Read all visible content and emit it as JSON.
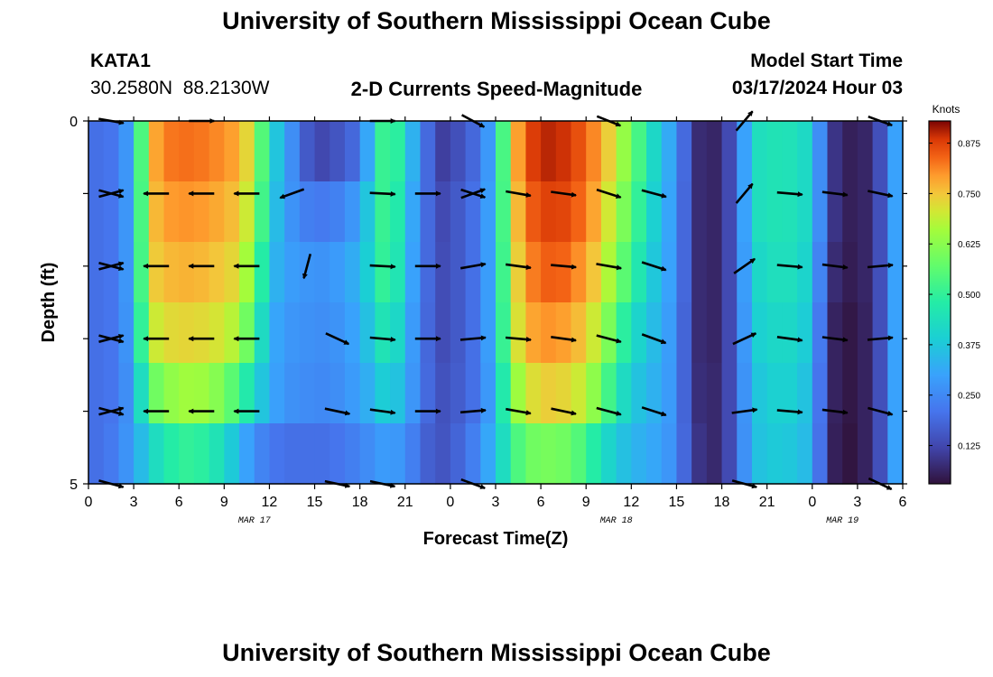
{
  "header": {
    "title": "University of Southern Mississippi Ocean Cube",
    "station_id": "KATA1",
    "station_coords": "30.2580N  88.2130W",
    "plot_title": "2-D Currents Speed-Magnitude",
    "model_start_label": "Model Start Time",
    "model_start_value": "03/17/2024 Hour 03"
  },
  "footer": {
    "title": "University of Southern Mississippi Ocean Cube"
  },
  "chart_data": {
    "type": "heatmap",
    "title": "2-D Currents Speed-Magnitude",
    "xlabel": "Forecast Time(Z)",
    "ylabel": "Depth (ft)",
    "x_tick_labels": [
      "0",
      "3",
      "6",
      "9",
      "12",
      "15",
      "18",
      "21",
      "0",
      "3",
      "6",
      "9",
      "12",
      "15",
      "18",
      "21",
      "0",
      "3",
      "6"
    ],
    "x_range_hours": [
      0,
      54
    ],
    "date_labels": [
      {
        "hour": 11,
        "text": "MAR 17"
      },
      {
        "hour": 35,
        "text": "MAR 18"
      },
      {
        "hour": 50,
        "text": "MAR 19"
      }
    ],
    "y_tick_labels": [
      {
        "depth": 0,
        "text": "0"
      },
      {
        "depth": 5,
        "text": "5"
      }
    ],
    "y_range_ft": [
      0,
      5
    ],
    "depth_levels": [
      0,
      1,
      2,
      3,
      4,
      5
    ],
    "colorbar": {
      "unit": "Knots",
      "range": [
        0.03,
        0.93
      ],
      "ticks": [
        "0.125",
        "0.250",
        "0.375",
        "0.500",
        "0.625",
        "0.750",
        "0.875"
      ],
      "tick_values": [
        0.125,
        0.25,
        0.375,
        0.5,
        0.625,
        0.75,
        0.875
      ]
    },
    "speed_profile": {
      "hours": [
        0,
        1,
        2,
        3,
        4,
        5,
        6,
        7,
        8,
        9,
        10,
        11,
        12,
        13,
        14,
        15,
        16,
        17,
        18,
        19,
        20,
        21,
        22,
        23,
        24,
        25,
        26,
        27,
        28,
        29,
        30,
        31,
        32,
        33,
        34,
        35,
        36,
        37,
        38,
        39,
        40,
        41,
        42,
        43,
        44,
        45,
        46,
        47,
        48,
        49,
        50,
        51,
        52,
        53,
        54
      ],
      "rows": [
        {
          "depth": 0,
          "values": [
            0.2,
            0.2,
            0.22,
            0.33,
            0.75,
            0.82,
            0.83,
            0.83,
            0.82,
            0.8,
            0.78,
            0.68,
            0.42,
            0.32,
            0.2,
            0.12,
            0.13,
            0.17,
            0.2,
            0.42,
            0.6,
            0.38,
            0.28,
            0.1,
            0.12,
            0.16,
            0.21,
            0.35,
            0.72,
            0.86,
            0.9,
            0.9,
            0.88,
            0.84,
            0.78,
            0.7,
            0.58,
            0.48,
            0.35,
            0.28,
            0.1,
            0.05,
            0.08,
            0.18,
            0.42,
            0.45,
            0.45,
            0.44,
            0.4,
            0.12,
            0.06,
            0.05,
            0.08,
            0.2,
            0.4
          ]
        },
        {
          "depth": 1,
          "values": [
            0.2,
            0.2,
            0.22,
            0.33,
            0.74,
            0.79,
            0.8,
            0.8,
            0.79,
            0.77,
            0.75,
            0.65,
            0.4,
            0.3,
            0.24,
            0.22,
            0.22,
            0.25,
            0.3,
            0.44,
            0.58,
            0.36,
            0.26,
            0.12,
            0.14,
            0.18,
            0.22,
            0.36,
            0.7,
            0.83,
            0.87,
            0.88,
            0.86,
            0.82,
            0.75,
            0.66,
            0.55,
            0.45,
            0.34,
            0.27,
            0.1,
            0.05,
            0.08,
            0.18,
            0.42,
            0.45,
            0.45,
            0.44,
            0.4,
            0.12,
            0.06,
            0.05,
            0.08,
            0.2,
            0.4
          ]
        },
        {
          "depth": 2,
          "values": [
            0.2,
            0.2,
            0.22,
            0.33,
            0.73,
            0.76,
            0.77,
            0.77,
            0.76,
            0.74,
            0.72,
            0.6,
            0.36,
            0.3,
            0.28,
            0.27,
            0.27,
            0.3,
            0.34,
            0.44,
            0.56,
            0.35,
            0.25,
            0.13,
            0.14,
            0.18,
            0.22,
            0.36,
            0.68,
            0.8,
            0.84,
            0.85,
            0.83,
            0.78,
            0.72,
            0.62,
            0.5,
            0.42,
            0.33,
            0.27,
            0.1,
            0.05,
            0.08,
            0.18,
            0.4,
            0.43,
            0.44,
            0.43,
            0.38,
            0.1,
            0.05,
            0.05,
            0.08,
            0.2,
            0.4
          ]
        },
        {
          "depth": 3,
          "values": [
            0.2,
            0.2,
            0.22,
            0.32,
            0.68,
            0.72,
            0.73,
            0.73,
            0.72,
            0.7,
            0.66,
            0.52,
            0.33,
            0.28,
            0.27,
            0.26,
            0.26,
            0.28,
            0.32,
            0.4,
            0.5,
            0.33,
            0.24,
            0.13,
            0.14,
            0.18,
            0.22,
            0.36,
            0.66,
            0.77,
            0.8,
            0.8,
            0.78,
            0.74,
            0.66,
            0.55,
            0.43,
            0.38,
            0.32,
            0.26,
            0.1,
            0.05,
            0.08,
            0.18,
            0.38,
            0.41,
            0.42,
            0.41,
            0.36,
            0.08,
            0.04,
            0.04,
            0.08,
            0.2,
            0.4
          ]
        },
        {
          "depth": 4,
          "values": [
            0.2,
            0.2,
            0.22,
            0.3,
            0.56,
            0.62,
            0.65,
            0.66,
            0.64,
            0.6,
            0.52,
            0.42,
            0.32,
            0.27,
            0.26,
            0.25,
            0.25,
            0.27,
            0.3,
            0.35,
            0.42,
            0.31,
            0.24,
            0.14,
            0.15,
            0.18,
            0.22,
            0.34,
            0.6,
            0.7,
            0.74,
            0.74,
            0.72,
            0.68,
            0.58,
            0.47,
            0.38,
            0.35,
            0.31,
            0.26,
            0.1,
            0.06,
            0.08,
            0.18,
            0.36,
            0.39,
            0.4,
            0.39,
            0.34,
            0.08,
            0.04,
            0.04,
            0.08,
            0.2,
            0.4
          ]
        },
        {
          "depth": 5,
          "values": [
            0.2,
            0.2,
            0.24,
            0.3,
            0.4,
            0.46,
            0.5,
            0.5,
            0.48,
            0.42,
            0.34,
            0.26,
            0.22,
            0.2,
            0.2,
            0.2,
            0.2,
            0.22,
            0.24,
            0.27,
            0.3,
            0.26,
            0.2,
            0.14,
            0.16,
            0.2,
            0.26,
            0.36,
            0.5,
            0.58,
            0.6,
            0.6,
            0.58,
            0.52,
            0.44,
            0.38,
            0.34,
            0.32,
            0.3,
            0.25,
            0.12,
            0.06,
            0.08,
            0.18,
            0.35,
            0.38,
            0.38,
            0.37,
            0.33,
            0.08,
            0.03,
            0.04,
            0.08,
            0.2,
            0.4
          ]
        }
      ]
    },
    "vector_series": [
      {
        "depth": 0,
        "vectors": [
          {
            "hour": 1.5,
            "angle": -10,
            "len": 2
          },
          {
            "hour": 7.5,
            "angle": 0,
            "len": 2
          },
          {
            "hour": 19.5,
            "angle": 0,
            "len": 2
          },
          {
            "hour": 25.5,
            "angle": -28,
            "len": 2
          },
          {
            "hour": 34.5,
            "angle": -22,
            "len": 2
          },
          {
            "hour": 43.5,
            "angle": 50,
            "len": 2
          },
          {
            "hour": 52.5,
            "angle": -20,
            "len": 2
          }
        ]
      },
      {
        "depth": 1,
        "vectors": [
          {
            "hour": 1.5,
            "angle": -15,
            "len": 2
          },
          {
            "hour": 1.5,
            "angle": 15,
            "len": 2
          },
          {
            "hour": 4.5,
            "angle": 180,
            "len": 2
          },
          {
            "hour": 7.5,
            "angle": 180,
            "len": 2
          },
          {
            "hour": 10.5,
            "angle": 180,
            "len": 2
          },
          {
            "hour": 13.5,
            "angle": 200,
            "len": 2
          },
          {
            "hour": 19.5,
            "angle": -3,
            "len": 2
          },
          {
            "hour": 22.5,
            "angle": 0,
            "len": 2
          },
          {
            "hour": 25.5,
            "angle": 20,
            "len": 2
          },
          {
            "hour": 25.5,
            "angle": -18,
            "len": 2
          },
          {
            "hour": 28.5,
            "angle": -10,
            "len": 2
          },
          {
            "hour": 31.5,
            "angle": -8,
            "len": 2
          },
          {
            "hour": 34.5,
            "angle": -18,
            "len": 2
          },
          {
            "hour": 37.5,
            "angle": -15,
            "len": 2
          },
          {
            "hour": 43.5,
            "angle": 50,
            "len": 2
          },
          {
            "hour": 46.5,
            "angle": -5,
            "len": 2
          },
          {
            "hour": 49.5,
            "angle": -7,
            "len": 2
          },
          {
            "hour": 52.5,
            "angle": -12,
            "len": 2
          }
        ]
      },
      {
        "depth": 2,
        "vectors": [
          {
            "hour": 1.5,
            "angle": -15,
            "len": 2
          },
          {
            "hour": 1.5,
            "angle": 15,
            "len": 2
          },
          {
            "hour": 4.5,
            "angle": 180,
            "len": 2
          },
          {
            "hour": 7.5,
            "angle": 180,
            "len": 2
          },
          {
            "hour": 10.5,
            "angle": 180,
            "len": 2
          },
          {
            "hour": 14.5,
            "angle": -105,
            "len": 2
          },
          {
            "hour": 19.5,
            "angle": -3,
            "len": 2
          },
          {
            "hour": 22.5,
            "angle": 0,
            "len": 2
          },
          {
            "hour": 25.5,
            "angle": 10,
            "len": 2
          },
          {
            "hour": 28.5,
            "angle": -8,
            "len": 2
          },
          {
            "hour": 31.5,
            "angle": -5,
            "len": 2
          },
          {
            "hour": 34.5,
            "angle": -10,
            "len": 2
          },
          {
            "hour": 37.5,
            "angle": -18,
            "len": 2
          },
          {
            "hour": 43.5,
            "angle": 35,
            "len": 2
          },
          {
            "hour": 46.5,
            "angle": -5,
            "len": 2
          },
          {
            "hour": 49.5,
            "angle": -7,
            "len": 2
          },
          {
            "hour": 52.5,
            "angle": 5,
            "len": 2
          }
        ]
      },
      {
        "depth": 3,
        "vectors": [
          {
            "hour": 1.5,
            "angle": -15,
            "len": 2
          },
          {
            "hour": 1.5,
            "angle": 15,
            "len": 2
          },
          {
            "hour": 4.5,
            "angle": 180,
            "len": 2
          },
          {
            "hour": 7.5,
            "angle": 180,
            "len": 2
          },
          {
            "hour": 10.5,
            "angle": 180,
            "len": 2
          },
          {
            "hour": 16.5,
            "angle": -25,
            "len": 2
          },
          {
            "hour": 19.5,
            "angle": -5,
            "len": 2
          },
          {
            "hour": 22.5,
            "angle": 0,
            "len": 2
          },
          {
            "hour": 25.5,
            "angle": 5,
            "len": 2
          },
          {
            "hour": 28.5,
            "angle": -5,
            "len": 2
          },
          {
            "hour": 31.5,
            "angle": -8,
            "len": 2
          },
          {
            "hour": 34.5,
            "angle": -15,
            "len": 2
          },
          {
            "hour": 37.5,
            "angle": -20,
            "len": 2
          },
          {
            "hour": 43.5,
            "angle": 25,
            "len": 2
          },
          {
            "hour": 46.5,
            "angle": -8,
            "len": 2
          },
          {
            "hour": 49.5,
            "angle": -7,
            "len": 2
          },
          {
            "hour": 52.5,
            "angle": 5,
            "len": 2
          }
        ]
      },
      {
        "depth": 4,
        "vectors": [
          {
            "hour": 1.5,
            "angle": -15,
            "len": 2
          },
          {
            "hour": 1.5,
            "angle": 15,
            "len": 2
          },
          {
            "hour": 4.5,
            "angle": 180,
            "len": 2
          },
          {
            "hour": 7.5,
            "angle": 180,
            "len": 2
          },
          {
            "hour": 10.5,
            "angle": 180,
            "len": 2
          },
          {
            "hour": 16.5,
            "angle": -12,
            "len": 2
          },
          {
            "hour": 19.5,
            "angle": -8,
            "len": 2
          },
          {
            "hour": 22.5,
            "angle": 0,
            "len": 2
          },
          {
            "hour": 25.5,
            "angle": 5,
            "len": 2
          },
          {
            "hour": 28.5,
            "angle": -10,
            "len": 2
          },
          {
            "hour": 31.5,
            "angle": -12,
            "len": 2
          },
          {
            "hour": 34.5,
            "angle": -15,
            "len": 2
          },
          {
            "hour": 37.5,
            "angle": -18,
            "len": 2
          },
          {
            "hour": 43.5,
            "angle": 8,
            "len": 2
          },
          {
            "hour": 46.5,
            "angle": -5,
            "len": 2
          },
          {
            "hour": 49.5,
            "angle": -7,
            "len": 2
          },
          {
            "hour": 52.5,
            "angle": -15,
            "len": 2
          }
        ]
      },
      {
        "depth": 5,
        "vectors": [
          {
            "hour": 1.5,
            "angle": -15,
            "len": 2
          },
          {
            "hour": 16.5,
            "angle": -12,
            "len": 2
          },
          {
            "hour": 19.5,
            "angle": -12,
            "len": 2
          },
          {
            "hour": 25.5,
            "angle": -20,
            "len": 2
          },
          {
            "hour": 43.5,
            "angle": -15,
            "len": 2
          },
          {
            "hour": 52.5,
            "angle": -25,
            "len": 2
          }
        ]
      }
    ]
  }
}
